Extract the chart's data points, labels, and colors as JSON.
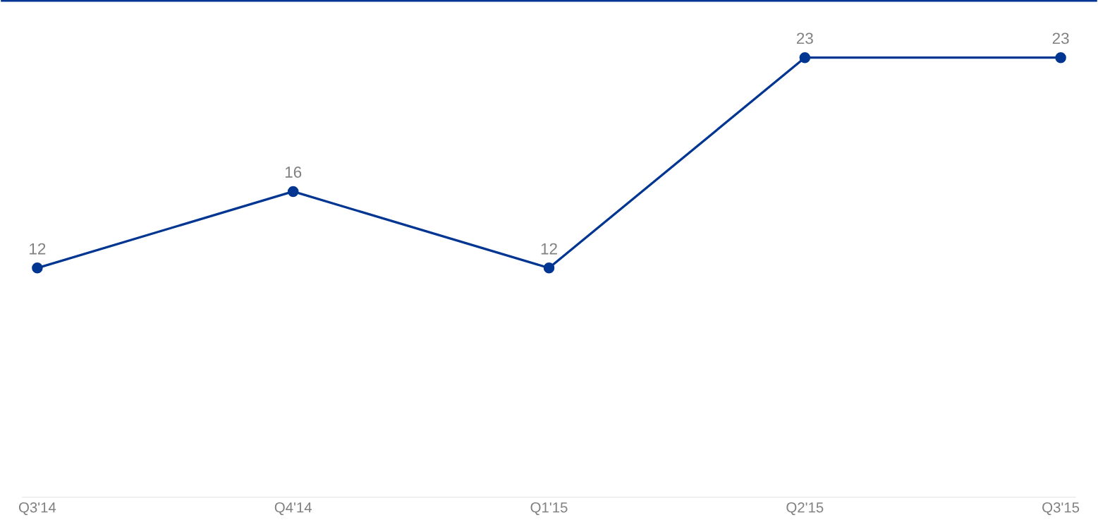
{
  "chart_data": {
    "type": "line",
    "categories": [
      "Q3'14",
      "Q4'14",
      "Q1'15",
      "Q2'15",
      "Q3'15"
    ],
    "series": [
      {
        "color": "#003591",
        "values": [
          12,
          16,
          12,
          23,
          23
        ]
      }
    ],
    "data_labels": true,
    "marker": "circle",
    "line_style": "solid"
  }
}
